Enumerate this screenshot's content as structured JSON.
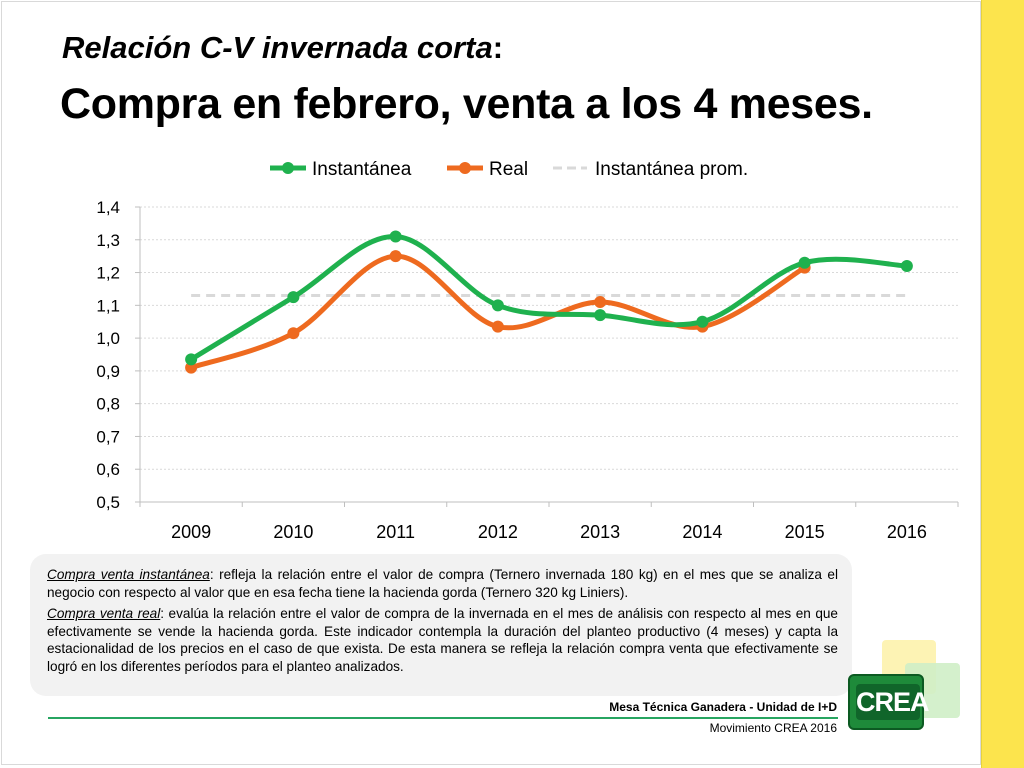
{
  "header": {
    "title_italic": "Relación C-V invernada corta",
    "title_colon": ":",
    "title_main": "Compra en febrero, venta a los 4 meses."
  },
  "chart_data": {
    "type": "line",
    "title": "",
    "xlabel": "",
    "ylabel": "",
    "categories": [
      "2009",
      "2010",
      "2011",
      "2012",
      "2013",
      "2014",
      "2015",
      "2016"
    ],
    "ylim": [
      0.5,
      1.4
    ],
    "yticks": [
      "0,5",
      "0,6",
      "0,7",
      "0,8",
      "0,9",
      "1,0",
      "1,1",
      "1,2",
      "1,3",
      "1,4"
    ],
    "legend_position": "top-center",
    "grid": "horizontal",
    "series": [
      {
        "name": "Instantánea",
        "color": "#1fb14e",
        "marker": "circle",
        "smooth": true,
        "values": [
          0.935,
          1.125,
          1.31,
          1.1,
          1.07,
          1.05,
          1.23,
          1.22
        ]
      },
      {
        "name": "Real",
        "color": "#ee6a1f",
        "marker": "circle",
        "smooth": true,
        "values": [
          0.91,
          1.015,
          1.25,
          1.035,
          1.11,
          1.035,
          1.215,
          null
        ]
      },
      {
        "name": "Instantánea prom.",
        "color": "#d9d9d9",
        "dashed": true,
        "values": [
          1.13,
          1.13,
          1.13,
          1.13,
          1.13,
          1.13,
          1.13,
          1.13
        ]
      }
    ]
  },
  "notes": {
    "p1_term": "Compra venta instantánea",
    "p1_text": ": refleja la relación entre el valor de compra (Ternero invernada 180 kg) en el mes que se analiza el negocio con respecto al valor que en esa  fecha tiene la hacienda gorda (Ternero 320 kg Liniers).",
    "p2_term": "Compra venta real",
    "p2_text": ": evalúa la relación entre el valor de compra de la invernada en el mes de análisis con respecto al mes en que efectivamente se vende la hacienda gorda. Este indicador contempla la duración del planteo productivo (4 meses) y capta la estacionalidad de los precios en el caso de que exista.  De esta manera se refleja la relación compra venta que efectivamente se logró en los diferentes períodos para el planteo  analizados."
  },
  "footer": {
    "line1": "Mesa Técnica Ganadera - Unidad de I+D",
    "line2": "Movimiento CREA 2016"
  },
  "logo": {
    "text": "CREA"
  },
  "colors": {
    "accent_yellow": "#fce44d",
    "crea_green": "#1e8a3a"
  }
}
